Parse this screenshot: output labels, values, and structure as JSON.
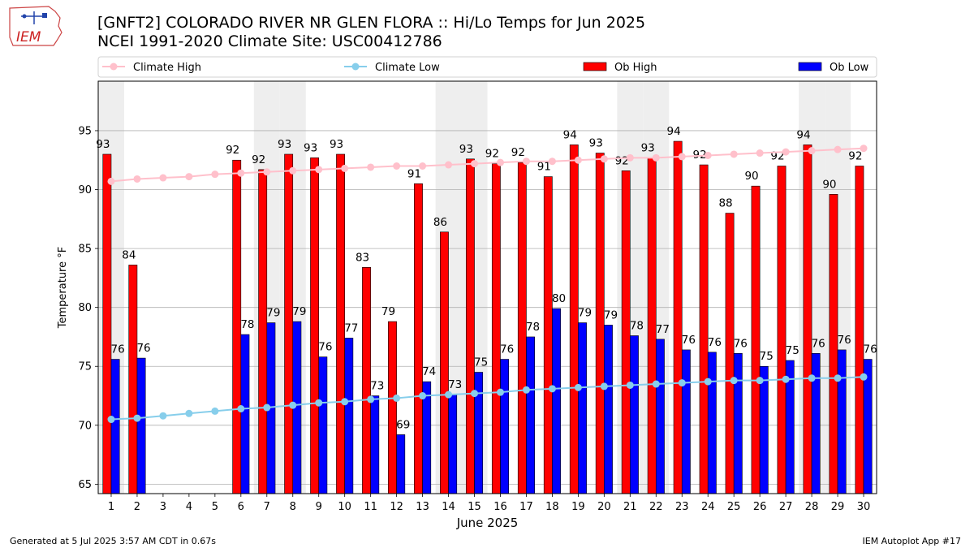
{
  "header": {
    "logo_text": "IEM",
    "title_line1": "[GNFT2] COLORADO RIVER NR GLEN FLORA :: Hi/Lo Temps for Jun 2025",
    "title_line2": "NCEI 1991-2020 Climate Site: USC00412786"
  },
  "footer": {
    "left": "Generated at 5 Jul 2025 3:57 AM CDT in 0.67s",
    "right": "IEM Autoplot App #17"
  },
  "colors": {
    "ob_high": "#ff0000",
    "ob_low": "#0000ff",
    "climate_high": "#ffc0cb",
    "climate_low": "#87ceeb",
    "weekend_shade": "#eeeeee",
    "grid": "#b0b0b0"
  },
  "chart_data": {
    "type": "bar",
    "xlabel": "June 2025",
    "ylabel": "Temperature °F",
    "ylim": [
      64.2,
      99.2
    ],
    "yticks": [
      65,
      70,
      75,
      80,
      85,
      90,
      95
    ],
    "categories": [
      "1",
      "2",
      "3",
      "4",
      "5",
      "6",
      "7",
      "8",
      "9",
      "10",
      "11",
      "12",
      "13",
      "14",
      "15",
      "16",
      "17",
      "18",
      "19",
      "20",
      "21",
      "22",
      "23",
      "24",
      "25",
      "26",
      "27",
      "28",
      "29",
      "30"
    ],
    "shaded_days": [
      1,
      7,
      8,
      14,
      15,
      21,
      22,
      28,
      29
    ],
    "grid": true,
    "legend_position": "top",
    "series": [
      {
        "name": "Climate High",
        "kind": "line",
        "values": [
          90.7,
          90.9,
          91.0,
          91.1,
          91.3,
          91.4,
          91.5,
          91.6,
          91.7,
          91.8,
          91.9,
          92.0,
          92.0,
          92.1,
          92.2,
          92.3,
          92.4,
          92.4,
          92.5,
          92.6,
          92.7,
          92.7,
          92.8,
          92.9,
          93.0,
          93.1,
          93.2,
          93.3,
          93.4,
          93.5
        ]
      },
      {
        "name": "Climate Low",
        "kind": "line",
        "values": [
          70.5,
          70.6,
          70.8,
          71.0,
          71.2,
          71.4,
          71.5,
          71.7,
          71.9,
          72.0,
          72.2,
          72.3,
          72.5,
          72.6,
          72.7,
          72.8,
          73.0,
          73.1,
          73.2,
          73.3,
          73.4,
          73.5,
          73.6,
          73.7,
          73.8,
          73.8,
          73.9,
          74.0,
          74.0,
          74.1
        ]
      },
      {
        "name": "Ob High",
        "kind": "bar",
        "values": [
          93.0,
          83.6,
          null,
          null,
          null,
          92.5,
          91.7,
          93.0,
          92.7,
          93.0,
          83.4,
          78.8,
          90.5,
          86.4,
          92.6,
          92.2,
          92.3,
          91.1,
          93.8,
          93.1,
          91.6,
          92.7,
          94.1,
          92.1,
          88.0,
          90.3,
          92.0,
          93.8,
          89.6,
          92.0
        ],
        "labels": [
          "93",
          "84",
          "",
          "",
          "",
          "92",
          "92",
          "93",
          "93",
          "93",
          "83",
          "79",
          "91",
          "86",
          "93",
          "92",
          "92",
          "91",
          "94",
          "93",
          "92",
          "93",
          "94",
          "92",
          "88",
          "90",
          "92",
          "94",
          "90",
          "92"
        ]
      },
      {
        "name": "Ob Low",
        "kind": "bar",
        "values": [
          75.6,
          75.7,
          null,
          null,
          null,
          77.7,
          78.7,
          78.8,
          75.8,
          77.4,
          72.5,
          69.2,
          73.7,
          72.6,
          74.5,
          75.6,
          77.5,
          79.9,
          78.7,
          78.5,
          77.6,
          77.3,
          76.4,
          76.2,
          76.1,
          75.0,
          75.5,
          76.1,
          76.4,
          75.6
        ],
        "labels": [
          "76",
          "76",
          "",
          "",
          "",
          "78",
          "79",
          "79",
          "76",
          "77",
          "73",
          "69",
          "74",
          "73",
          "75",
          "76",
          "78",
          "80",
          "79",
          "79",
          "78",
          "77",
          "76",
          "76",
          "76",
          "75",
          "75",
          "76",
          "76",
          "76"
        ]
      }
    ]
  }
}
